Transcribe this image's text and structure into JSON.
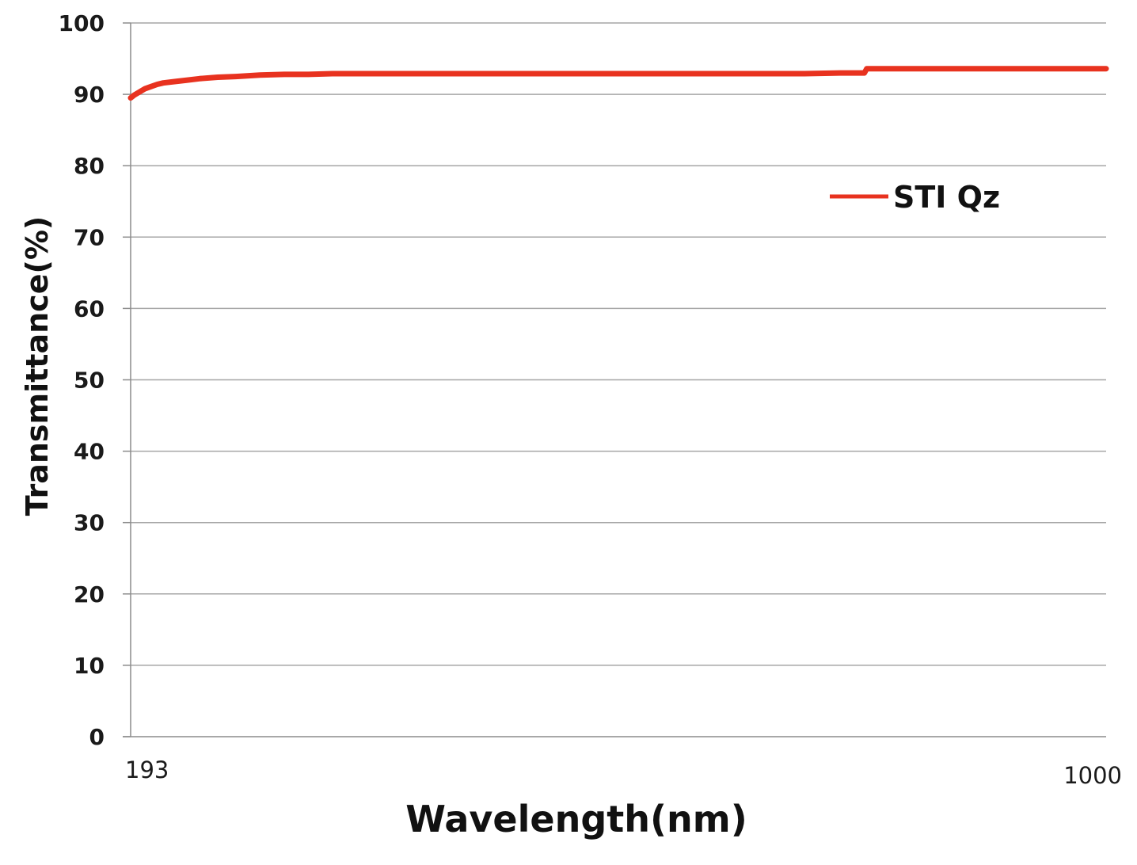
{
  "chart_data": {
    "type": "line",
    "xlabel": "Wavelength(nm)",
    "ylabel": "Transmittance(%)",
    "xlim": [
      193,
      1000
    ],
    "ylim": [
      0,
      100
    ],
    "y_ticks": [
      0,
      10,
      20,
      30,
      40,
      50,
      60,
      70,
      80,
      90,
      100
    ],
    "x_ticks": [
      193,
      1000
    ],
    "x_tick_labels": [
      "193",
      "1000"
    ],
    "grid": true,
    "legend": {
      "placement": "top-right"
    },
    "series": [
      {
        "name": "STI Qz",
        "color": "#e8321f",
        "x": [
          193,
          196,
          200,
          205,
          210,
          215,
          220,
          230,
          240,
          250,
          265,
          280,
          300,
          320,
          340,
          360,
          380,
          400,
          450,
          500,
          550,
          600,
          650,
          700,
          750,
          780,
          800,
          802,
          805,
          820,
          850,
          900,
          950,
          1000
        ],
        "y": [
          89.5,
          89.9,
          90.3,
          90.8,
          91.1,
          91.4,
          91.6,
          91.8,
          92.0,
          92.2,
          92.4,
          92.5,
          92.7,
          92.8,
          92.8,
          92.9,
          92.9,
          92.9,
          92.9,
          92.9,
          92.9,
          92.9,
          92.9,
          92.9,
          92.9,
          93.0,
          93.0,
          93.6,
          93.6,
          93.6,
          93.6,
          93.6,
          93.6,
          93.6
        ]
      }
    ]
  }
}
